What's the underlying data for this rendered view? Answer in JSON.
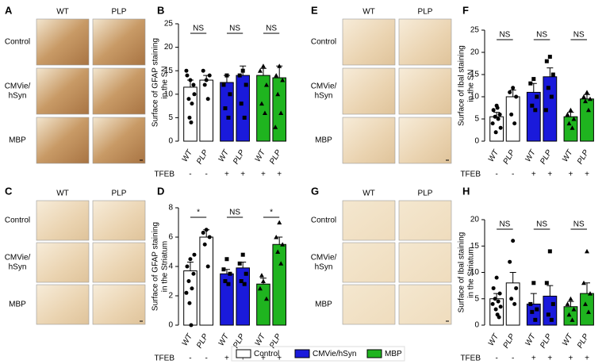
{
  "image_panels": [
    {
      "letter": "A",
      "columns": [
        "WT",
        "PLP"
      ],
      "rows": [
        [
          "Control"
        ],
        [
          "CMVie/",
          "hSyn"
        ],
        [
          "MBP"
        ]
      ]
    },
    {
      "letter": "C",
      "columns": [
        "WT",
        "PLP"
      ],
      "rows": [
        [
          "Control"
        ],
        [
          "CMVie/",
          "hSyn"
        ],
        [
          "MBP"
        ]
      ]
    },
    {
      "letter": "E",
      "columns": [
        "WT",
        "PLP"
      ],
      "rows": [
        [
          "Control"
        ],
        [
          "CMVie/",
          "hSyn"
        ],
        [
          "MBP"
        ]
      ]
    },
    {
      "letter": "G",
      "columns": [
        "WT",
        "PLP"
      ],
      "rows": [
        [
          "Control"
        ],
        [
          "CMVie/",
          "hSyn"
        ],
        [
          "MBP"
        ]
      ]
    }
  ],
  "row_label_colors": [
    "#000000",
    "#1f3fd6",
    "#1fa81f"
  ],
  "chart_data": [
    {
      "type": "bar",
      "letter": "B",
      "ylabel": [
        "Surface of GFAP staining",
        "in the SN"
      ],
      "categories": [
        "WT",
        "PLP",
        "WT",
        "PLP",
        "WT",
        "PLP"
      ],
      "treatment_label": "TFEB",
      "treatment": [
        "-",
        "-",
        "+",
        "+",
        "+",
        "+"
      ],
      "colors": [
        "#ffffff",
        "#ffffff",
        "#1a1adb",
        "#1a1adb",
        "#1fb41f",
        "#1fb41f"
      ],
      "markers": [
        "circle",
        "circle",
        "square",
        "square",
        "triangle",
        "triangle"
      ],
      "values": [
        11.5,
        13,
        12.5,
        14,
        14,
        13.5
      ],
      "errors": [
        1.5,
        1,
        1.5,
        2,
        1.5,
        2.5
      ],
      "points": [
        [
          13,
          14,
          12,
          9,
          8,
          15,
          10,
          5,
          4
        ],
        [
          13,
          15,
          14,
          12,
          9
        ],
        [
          14,
          12,
          10,
          7,
          5
        ],
        [
          15,
          14,
          12,
          8,
          5
        ],
        [
          16,
          15,
          12,
          8,
          6
        ],
        [
          16,
          14,
          13,
          10,
          6,
          3
        ]
      ],
      "significance": [
        "NS",
        "NS",
        "NS"
      ],
      "ylim": [
        0,
        25
      ],
      "yticks": [
        0,
        5,
        10,
        15,
        20,
        25
      ]
    },
    {
      "type": "bar",
      "letter": "D",
      "ylabel": [
        "Surface of GFAP staining",
        "in the Striatum"
      ],
      "categories": [
        "WT",
        "PLP",
        "WT",
        "PLP",
        "WT",
        "PLP"
      ],
      "treatment_label": "TFEB",
      "treatment": [
        "-",
        "-",
        "+",
        "+",
        "+",
        "+"
      ],
      "colors": [
        "#ffffff",
        "#ffffff",
        "#1a1adb",
        "#1a1adb",
        "#1fb41f",
        "#1fb41f"
      ],
      "markers": [
        "circle",
        "circle",
        "square",
        "square",
        "triangle",
        "triangle"
      ],
      "values": [
        3.7,
        6.0,
        3.5,
        3.9,
        2.8,
        5.5
      ],
      "errors": [
        0.6,
        0.5,
        0.3,
        0.4,
        0.4,
        0.5
      ],
      "points": [
        [
          4.5,
          4.0,
          3.5,
          3.0,
          2.5,
          2.2,
          4.8,
          1.5,
          0
        ],
        [
          6.5,
          6.3,
          6.0,
          5.5,
          4.0
        ],
        [
          4.5,
          3.8,
          3.5,
          3.0,
          2.8
        ],
        [
          4.8,
          4.2,
          3.5,
          3.0,
          2.8
        ],
        [
          3.0,
          2.5,
          1.8,
          3.4
        ],
        [
          7,
          6,
          5.5,
          5,
          4.2
        ]
      ],
      "significance": [
        "*",
        "NS",
        "*"
      ],
      "ylim": [
        0,
        8
      ],
      "yticks": [
        0,
        2,
        4,
        6,
        8
      ]
    },
    {
      "type": "bar",
      "letter": "F",
      "ylabel": [
        "Surface of Ibal staining",
        "in the SN"
      ],
      "categories": [
        "WT",
        "PLP",
        "WT",
        "PLP",
        "WT",
        "PLP"
      ],
      "treatment_label": "TFEB",
      "treatment": [
        "-",
        "-",
        "+",
        "+",
        "+",
        "+"
      ],
      "colors": [
        "#ffffff",
        "#ffffff",
        "#1a1adb",
        "#1a1adb",
        "#1fb41f",
        "#1fb41f"
      ],
      "markers": [
        "circle",
        "circle",
        "square",
        "square",
        "triangle",
        "triangle"
      ],
      "values": [
        5.5,
        10,
        11,
        14.5,
        5.5,
        9.5
      ],
      "errors": [
        1,
        1.5,
        2,
        2,
        1,
        1
      ],
      "points": [
        [
          8,
          7,
          6,
          5.5,
          5,
          4,
          3,
          2,
          7.5
        ],
        [
          12,
          11,
          10,
          6,
          4
        ],
        [
          14,
          13,
          10,
          8,
          7
        ],
        [
          19,
          18,
          15,
          12,
          10,
          7
        ],
        [
          7,
          6,
          5,
          4,
          3
        ],
        [
          11,
          10,
          9.5,
          9,
          7
        ]
      ],
      "significance": [
        "NS",
        "NS",
        "NS"
      ],
      "ylim": [
        0,
        25
      ],
      "yticks": [
        0,
        5,
        10,
        15,
        20,
        25
      ]
    },
    {
      "type": "bar",
      "letter": "H",
      "ylabel": [
        "Surface of Ibal staining",
        "in the Striatum"
      ],
      "categories": [
        "WT",
        "PLP",
        "WT",
        "PLP",
        "WT",
        "PLP"
      ],
      "treatment_label": "TFEB",
      "treatment": [
        "-",
        "-",
        "+",
        "+",
        "+",
        "+"
      ],
      "colors": [
        "#ffffff",
        "#ffffff",
        "#1a1adb",
        "#1a1adb",
        "#1fb41f",
        "#1fb41f"
      ],
      "markers": [
        "circle",
        "circle",
        "square",
        "square",
        "triangle",
        "triangle"
      ],
      "values": [
        5,
        8,
        4,
        5.5,
        3.5,
        6
      ],
      "errors": [
        1,
        2,
        2,
        2,
        1,
        2
      ],
      "points": [
        [
          9,
          7,
          6,
          5,
          4.5,
          4,
          3.5,
          3,
          2,
          1.5
        ],
        [
          16,
          12,
          7,
          5,
          4
        ],
        [
          8,
          4,
          3,
          2.5,
          1
        ],
        [
          14,
          8,
          4,
          2,
          1
        ],
        [
          5,
          4,
          3,
          2,
          1
        ],
        [
          14,
          8,
          6,
          4,
          2.5
        ]
      ],
      "significance": [
        "NS",
        "NS",
        "NS"
      ],
      "ylim": [
        0,
        20
      ],
      "yticks": [
        0,
        5,
        10,
        15,
        20
      ]
    }
  ],
  "legend": [
    {
      "name": "Control",
      "color": "#ffffff"
    },
    {
      "name": "CMVie/hSyn",
      "color": "#1a1adb"
    },
    {
      "name": "MBP",
      "color": "#1fb41f"
    }
  ]
}
